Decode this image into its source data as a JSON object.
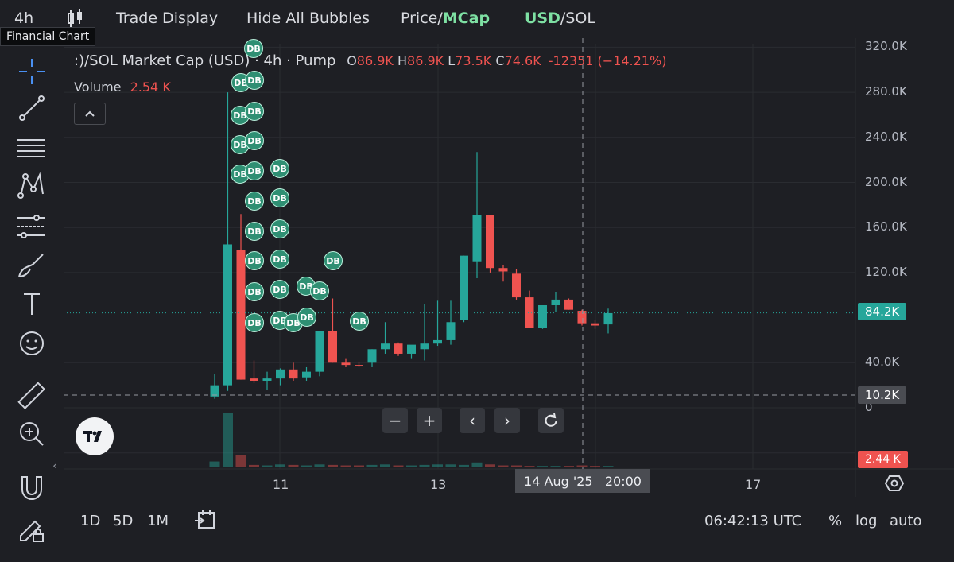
{
  "topbar": {
    "interval": "4h",
    "chart_type_icon": "candles-icon",
    "trade_display": "Trade Display",
    "hide_bubbles": "Hide All Bubbles",
    "price_label": "Price",
    "mcap_label": "MCap",
    "usd_label": "USD",
    "sol_label": "SOL",
    "separator": "/"
  },
  "tooltip": "Financial Chart",
  "sidebar": {
    "tools": [
      "crosshair-icon",
      "trend-line-icon",
      "horizontal-lines-icon",
      "pattern-icon",
      "fib-icon",
      "brush-icon",
      "text-icon",
      "emoji-icon",
      "ruler-icon",
      "zoom-in-icon",
      "magnet-icon",
      "lock-edit-icon"
    ]
  },
  "legend": {
    "title": ":)/SOL Market Cap (USD) · 4h · Pump",
    "o_label": "O",
    "o_value": "86.9K",
    "h_label": "H",
    "h_value": "86.9K",
    "l_label": "L",
    "l_value": "73.5K",
    "c_label": "C",
    "c_value": "74.6K",
    "change": "-12351 (−14.21%)",
    "volume_label": "Volume",
    "volume_value": "2.54 K",
    "collapse_icon": "chevron-up-icon"
  },
  "nav_buttons": {
    "minus": "−",
    "plus": "+",
    "left": "‹",
    "right": "›",
    "reset_icon": "reset-icon"
  },
  "crosshair": {
    "date_label": "14 Aug '25   20:00",
    "price_label": "10.2K"
  },
  "last_price": {
    "label": "84.2K",
    "volume_label": "2.44 K"
  },
  "bottom_bar": {
    "ranges": [
      "1D",
      "5D",
      "1M"
    ],
    "calendar_icon": "calendar-icon",
    "time": "06:42:13 UTC",
    "percent": "%",
    "log": "log",
    "auto": "auto"
  },
  "bubbles_label": "DB",
  "colors": {
    "up": "#26a69a",
    "down": "#ef5350",
    "background": "#1e1f24",
    "accent": "#7ee0a3",
    "bubble": "#2f8f73"
  },
  "chart_data": {
    "type": "candlestick",
    "title": ":)/SOL Market Cap (USD) · 4h · Pump",
    "y_ticks": [
      "320.0K",
      "280.0K",
      "240.0K",
      "200.0K",
      "160.0K",
      "120.0K",
      "40.0K",
      "0"
    ],
    "x_ticks": [
      "11",
      "13",
      "17"
    ],
    "ylim": [
      -40000,
      320000
    ],
    "candles": [
      {
        "o": 10,
        "h": 30,
        "l": 8,
        "c": 20
      },
      {
        "o": 20,
        "h": 280,
        "l": 15,
        "c": 145
      },
      {
        "o": 140,
        "h": 172,
        "l": 25,
        "c": 25
      },
      {
        "o": 26,
        "h": 42,
        "l": 22,
        "c": 24
      },
      {
        "o": 24,
        "h": 32,
        "l": 16,
        "c": 26
      },
      {
        "o": 26,
        "h": 35,
        "l": 20,
        "c": 34
      },
      {
        "o": 34,
        "h": 40,
        "l": 24,
        "c": 26
      },
      {
        "o": 27,
        "h": 36,
        "l": 24,
        "c": 32
      },
      {
        "o": 32,
        "h": 68,
        "l": 28,
        "c": 68
      },
      {
        "o": 68,
        "h": 97,
        "l": 40,
        "c": 40
      },
      {
        "o": 40,
        "h": 44,
        "l": 36,
        "c": 38
      },
      {
        "o": 38,
        "h": 41,
        "l": 36,
        "c": 37
      },
      {
        "o": 40,
        "h": 52,
        "l": 36,
        "c": 52
      },
      {
        "o": 52,
        "h": 76,
        "l": 48,
        "c": 57
      },
      {
        "o": 57,
        "h": 58,
        "l": 46,
        "c": 48
      },
      {
        "o": 48,
        "h": 55,
        "l": 44,
        "c": 56
      },
      {
        "o": 52,
        "h": 92,
        "l": 42,
        "c": 57
      },
      {
        "o": 57,
        "h": 95,
        "l": 55,
        "c": 60
      },
      {
        "o": 60,
        "h": 95,
        "l": 56,
        "c": 76
      },
      {
        "o": 78,
        "h": 135,
        "l": 76,
        "c": 135
      },
      {
        "o": 130,
        "h": 227,
        "l": 115,
        "c": 171
      },
      {
        "o": 171,
        "h": 171,
        "l": 120,
        "c": 124
      },
      {
        "o": 124,
        "h": 127,
        "l": 112,
        "c": 121
      },
      {
        "o": 119,
        "h": 123,
        "l": 96,
        "c": 98
      },
      {
        "o": 98,
        "h": 104,
        "l": 71,
        "c": 71
      },
      {
        "o": 71,
        "h": 91,
        "l": 70,
        "c": 91
      },
      {
        "o": 91,
        "h": 103,
        "l": 85,
        "c": 96
      },
      {
        "o": 96,
        "h": 97,
        "l": 87,
        "c": 87
      },
      {
        "o": 86,
        "h": 87,
        "l": 73,
        "c": 75
      },
      {
        "o": 75,
        "h": 78,
        "l": 70,
        "c": 73
      },
      {
        "o": 74,
        "h": 88,
        "l": 66,
        "c": 84
      }
    ],
    "volume": [
      12,
      110,
      25,
      5,
      4,
      6,
      5,
      4,
      6,
      5,
      4,
      4,
      5,
      6,
      4,
      4,
      5,
      6,
      6,
      5,
      10,
      6,
      4,
      4,
      3,
      3,
      3,
      3,
      4,
      3,
      3
    ],
    "last_price": 84200,
    "crosshair_price": 10200,
    "crosshair_time": "14 Aug '25 20:00"
  }
}
